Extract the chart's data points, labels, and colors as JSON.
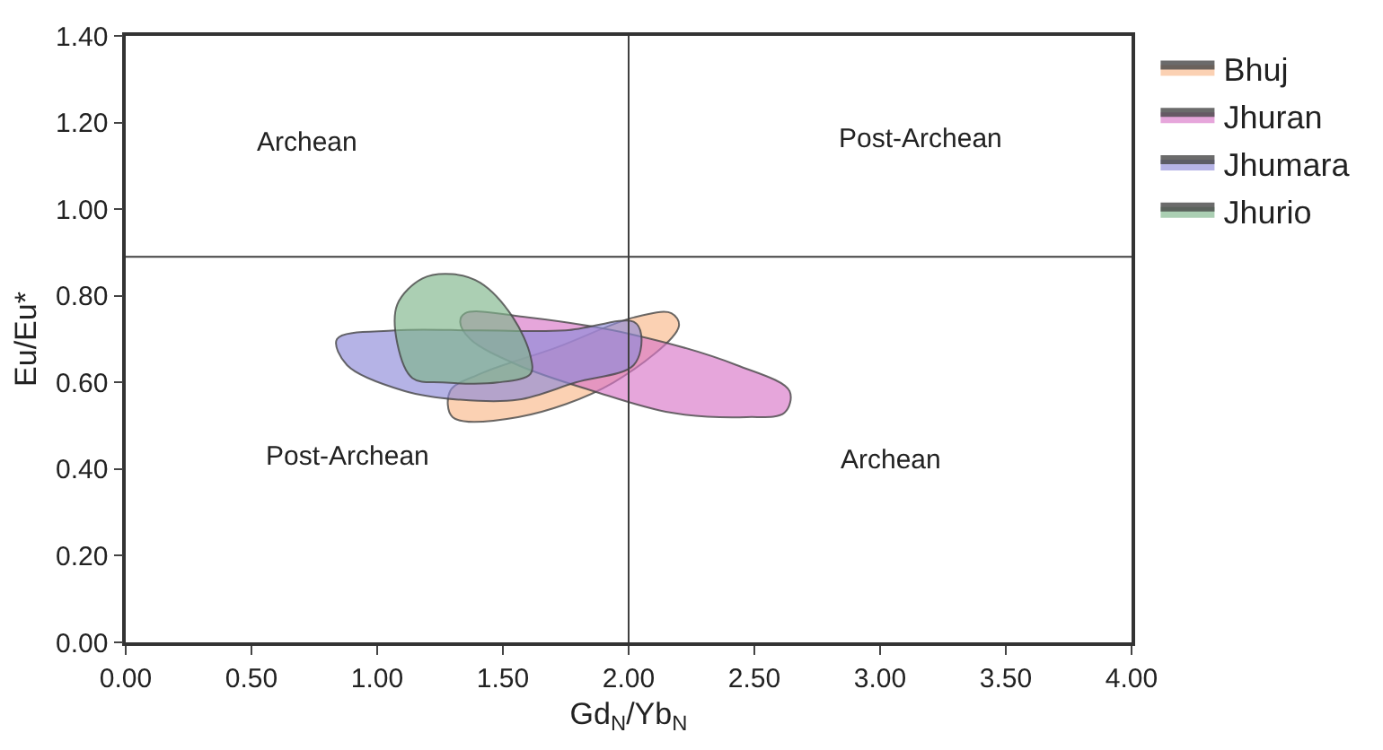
{
  "chart_data": {
    "type": "area",
    "xlabel": "Gd$_{N}$/Yb$_{N}$",
    "ylabel": "Eu/Eu*",
    "xlim": [
      0,
      4
    ],
    "ylim": [
      0,
      1.4
    ],
    "xticks": [
      {
        "value": 0,
        "label": "0.00"
      },
      {
        "value": 0.5,
        "label": "0.50"
      },
      {
        "value": 1,
        "label": "1.00"
      },
      {
        "value": 1.5,
        "label": "1.50"
      },
      {
        "value": 2,
        "label": "2.00"
      },
      {
        "value": 2.5,
        "label": "2.50"
      },
      {
        "value": 3,
        "label": "3.00"
      },
      {
        "value": 3.5,
        "label": "3.50"
      },
      {
        "value": 4,
        "label": "4.00"
      }
    ],
    "yticks": [
      {
        "value": 0,
        "label": "0.00"
      },
      {
        "value": 0.2,
        "label": "0.20"
      },
      {
        "value": 0.4,
        "label": "0.40"
      },
      {
        "value": 0.6,
        "label": "0.60"
      },
      {
        "value": 0.8,
        "label": "0.80"
      },
      {
        "value": 1.0,
        "label": "1.00"
      },
      {
        "value": 1.2,
        "label": "1.20"
      },
      {
        "value": 1.4,
        "label": "1.40"
      }
    ],
    "legend": "top right",
    "series": [
      {
        "name": "Bhuj",
        "color": "#f9b98a",
        "x": [
          1.3,
          1.56,
          1.94,
          2.2,
          2.17,
          2.02,
          1.71,
          1.41,
          1.29
        ],
        "values": [
          0.52,
          0.52,
          0.6,
          0.73,
          0.76,
          0.75,
          0.68,
          0.62,
          0.58
        ]
      },
      {
        "name": "Jhuran",
        "color": "#d977c8",
        "x": [
          1.35,
          1.6,
          2.02,
          2.43,
          2.64,
          2.62,
          2.47,
          2.17,
          1.86,
          1.56,
          1.37,
          1.33
        ],
        "values": [
          0.76,
          0.75,
          0.71,
          0.64,
          0.58,
          0.53,
          0.52,
          0.53,
          0.58,
          0.64,
          0.7,
          0.74
        ]
      },
      {
        "name": "Jhumara",
        "color": "#8e8ad8",
        "x": [
          0.84,
          1.07,
          1.41,
          1.75,
          2.02,
          2.05,
          2.02,
          1.79,
          1.56,
          1.33,
          1.11,
          0.88
        ],
        "values": [
          0.7,
          0.72,
          0.72,
          0.72,
          0.74,
          0.71,
          0.64,
          0.6,
          0.56,
          0.56,
          0.58,
          0.64
        ]
      },
      {
        "name": "Jhurio",
        "color": "#7eb58a",
        "x": [
          1.08,
          1.18,
          1.3,
          1.41,
          1.54,
          1.61,
          1.61,
          1.48,
          1.26,
          1.14,
          1.08
        ],
        "values": [
          0.78,
          0.84,
          0.85,
          0.83,
          0.75,
          0.66,
          0.62,
          0.6,
          0.6,
          0.61,
          0.69
        ]
      }
    ],
    "ref_lines": [
      {
        "axis": "x",
        "value": 2.0,
        "color": "#404040"
      },
      {
        "axis": "y",
        "value": 0.89,
        "color": "#404040"
      }
    ],
    "annotations": [
      "Archean",
      "Post-Archean",
      "Post-Archean",
      "Archean"
    ]
  }
}
